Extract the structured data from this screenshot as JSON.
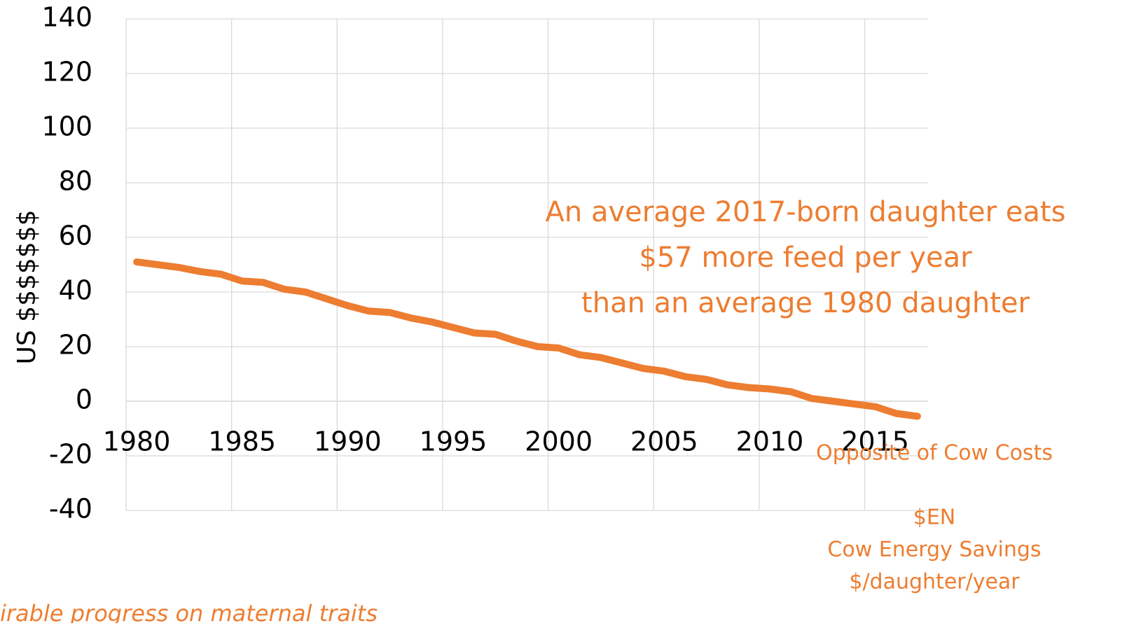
{
  "chart_data": {
    "type": "line",
    "y_label": "US $$$$$$$",
    "categories": [
      "1980",
      null,
      null,
      null,
      null,
      "1985",
      null,
      null,
      null,
      null,
      "1990",
      null,
      null,
      null,
      null,
      "1995",
      null,
      null,
      null,
      null,
      "2000",
      null,
      null,
      null,
      null,
      "2005",
      null,
      null,
      null,
      null,
      "2010",
      null,
      null,
      null,
      null,
      "2015",
      null,
      null
    ],
    "series": [
      {
        "name": [
          "$EN",
          "Cow Energy Savings",
          "$/daughter/year"
        ],
        "color": "#ED7D31",
        "values": [
          51,
          50,
          49,
          47.5,
          46.5,
          44,
          43.5,
          41,
          40,
          37.5,
          35,
          33,
          32.5,
          30.5,
          29,
          27,
          25,
          24.5,
          22,
          20,
          19.5,
          17,
          16,
          14,
          12,
          11,
          9,
          8,
          6,
          5,
          4.5,
          3.5,
          1,
          0,
          -1,
          -2,
          -4.5,
          -5.5
        ]
      }
    ],
    "ylim": [
      -40,
      140
    ],
    "yticks": [
      -40,
      -20,
      0,
      20,
      40,
      60,
      80,
      100,
      120,
      140
    ],
    "grid": true,
    "annotation_lines": [
      "An average 2017-born daughter eats",
      "$57 more feed per year",
      "than an average 1980 daughter"
    ],
    "note": "Opposite of Cow Costs",
    "footer": "irable progress on maternal traits"
  }
}
